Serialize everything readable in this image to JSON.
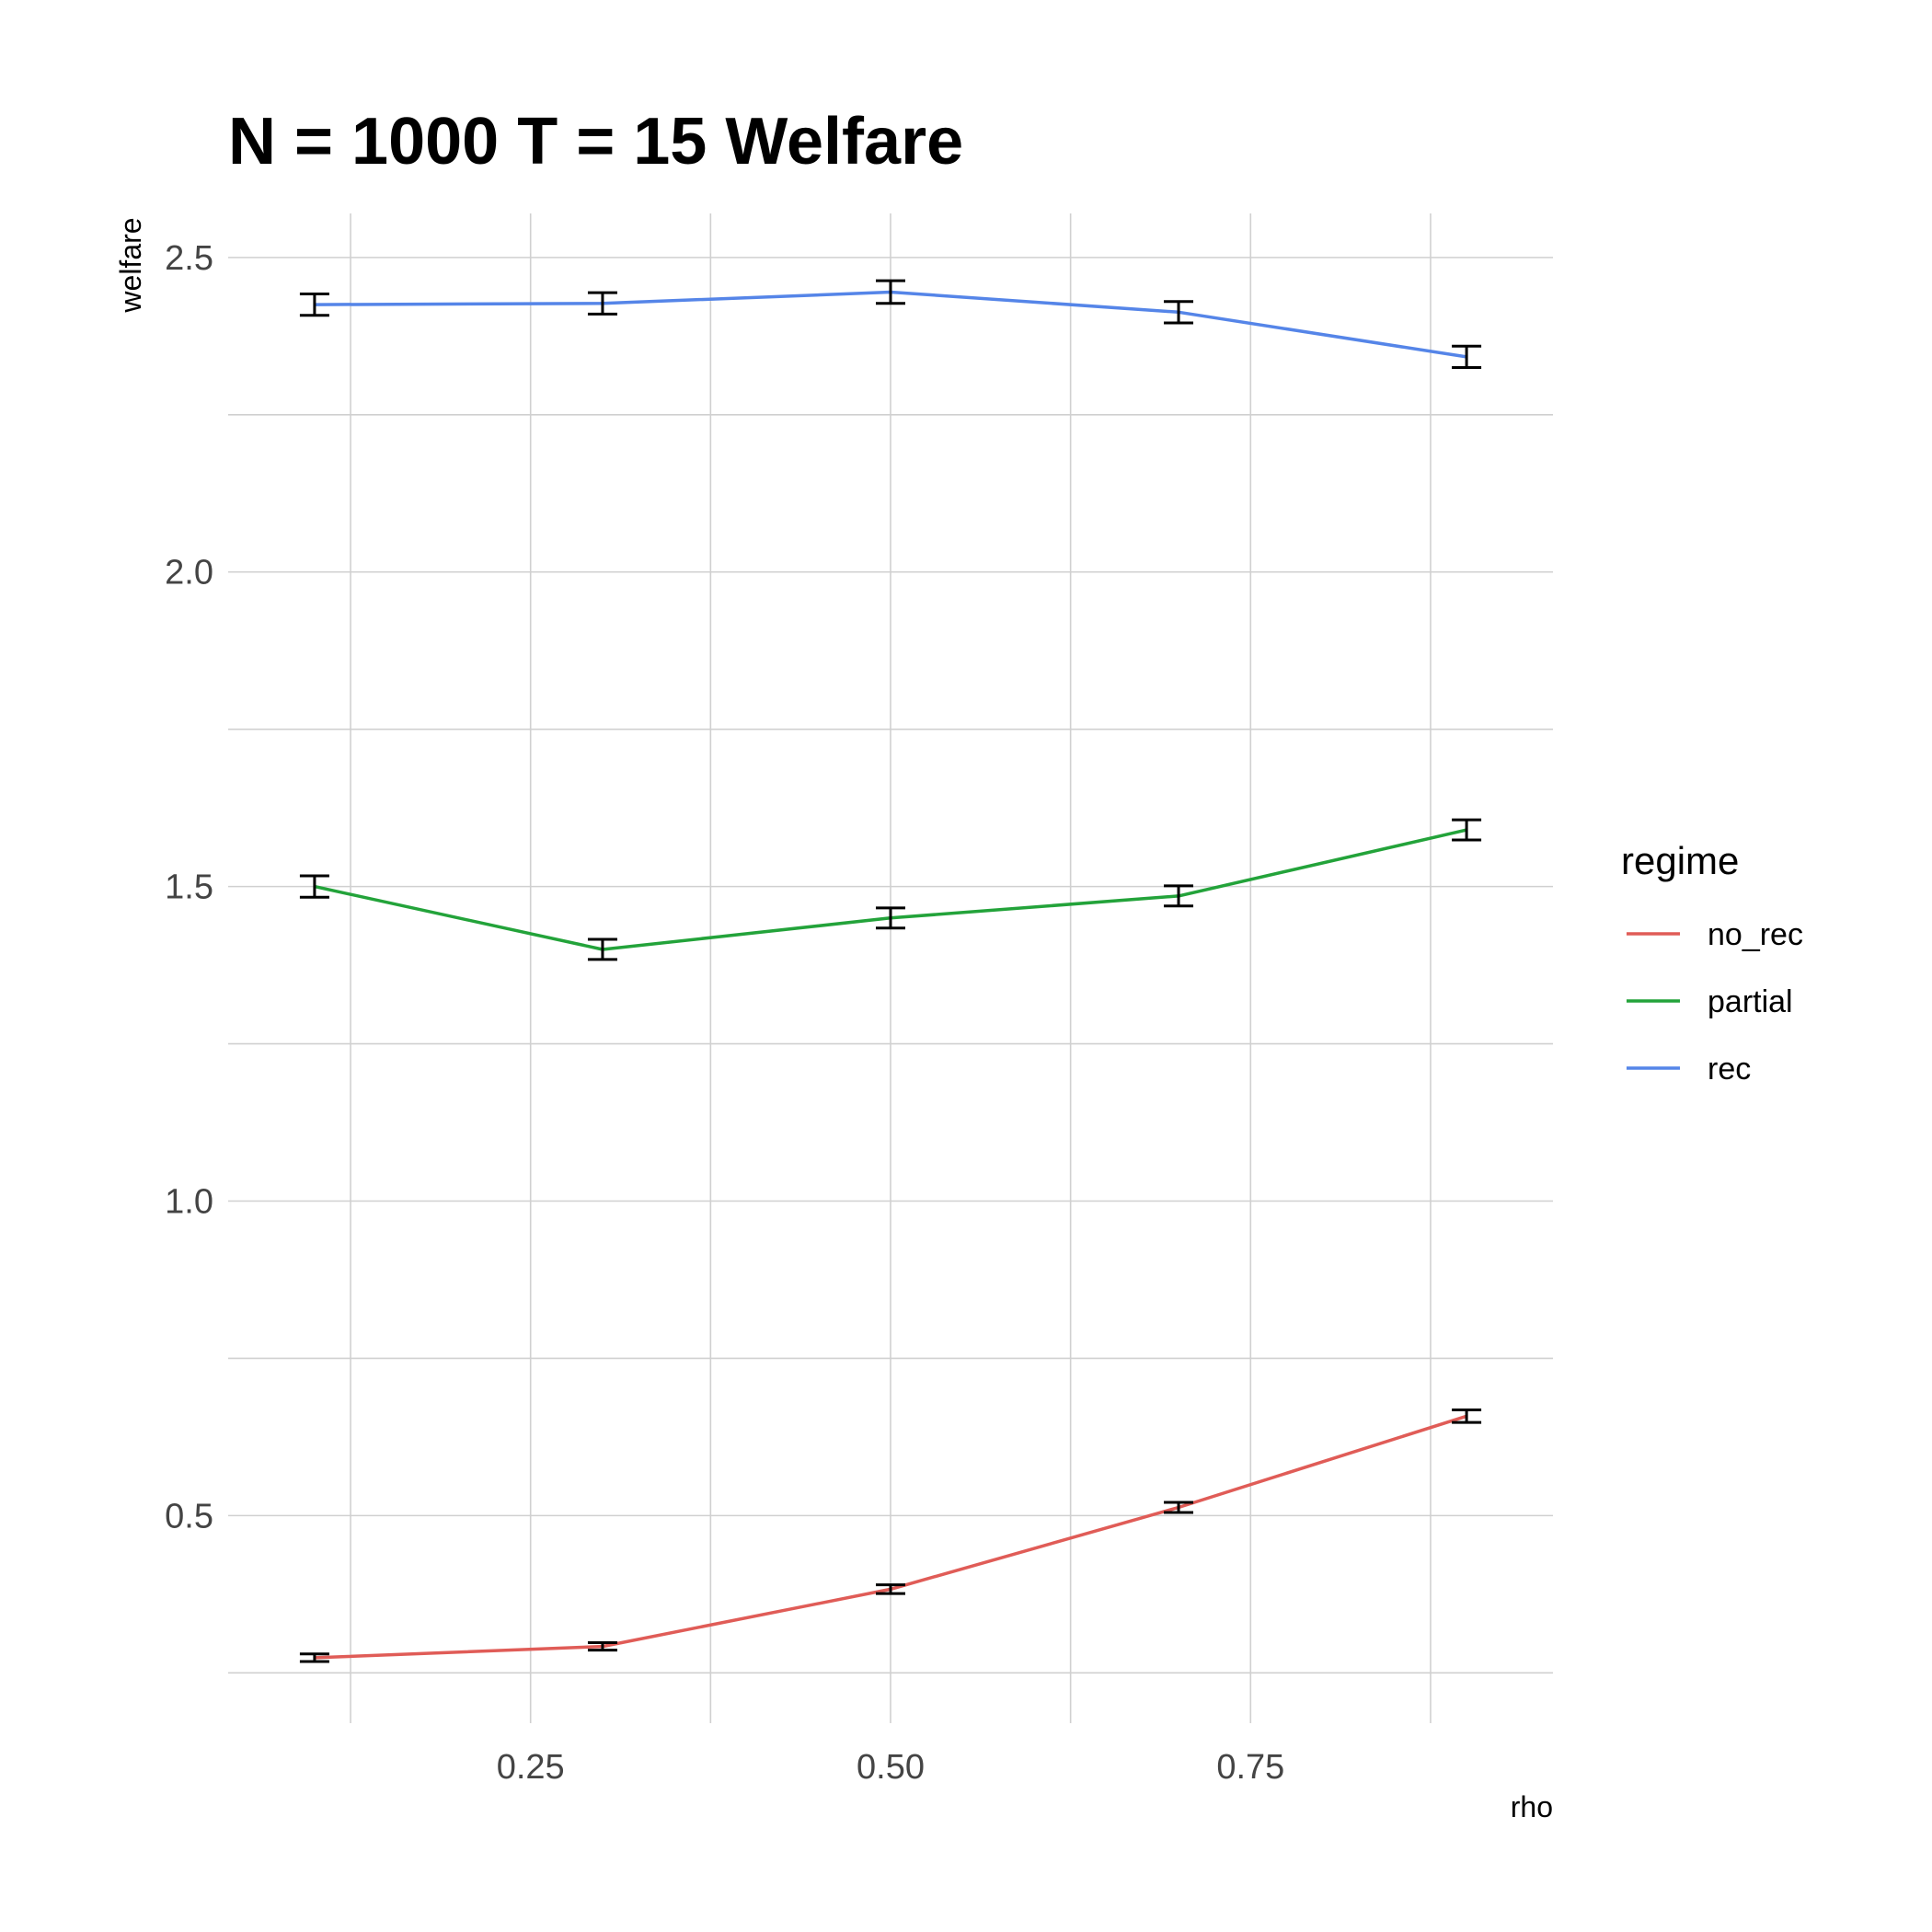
{
  "chart_data": {
    "type": "line",
    "title": "N = 1000 T = 15 Welfare",
    "xlabel": "rho",
    "ylabel": "welfare",
    "x": [
      0.1,
      0.3,
      0.5,
      0.7,
      0.9
    ],
    "xlim": [
      0.04,
      0.96
    ],
    "ylim": [
      0.17,
      2.57
    ],
    "x_ticks": [
      "0.25",
      "0.50",
      "0.75"
    ],
    "x_tick_values": [
      0.25,
      0.5,
      0.75
    ],
    "y_ticks": [
      "0.5",
      "1.0",
      "1.5",
      "2.0",
      "2.5"
    ],
    "y_tick_values": [
      0.5,
      1.0,
      1.5,
      2.0,
      2.5
    ],
    "grid": true,
    "legend": {
      "title": "regime",
      "position": "right"
    },
    "series": [
      {
        "name": "no_rec",
        "color": "#e05c57",
        "values": [
          0.274,
          0.292,
          0.383,
          0.513,
          0.658
        ],
        "err": [
          0.006,
          0.006,
          0.007,
          0.008,
          0.01
        ]
      },
      {
        "name": "partial",
        "color": "#23a33a",
        "values": [
          1.5,
          1.4,
          1.45,
          1.485,
          1.59
        ],
        "err": [
          0.017,
          0.016,
          0.016,
          0.016,
          0.016
        ]
      },
      {
        "name": "rec",
        "color": "#5585e8",
        "values": [
          2.425,
          2.427,
          2.445,
          2.413,
          2.342
        ],
        "err": [
          0.017,
          0.017,
          0.018,
          0.017,
          0.017
        ]
      }
    ]
  }
}
